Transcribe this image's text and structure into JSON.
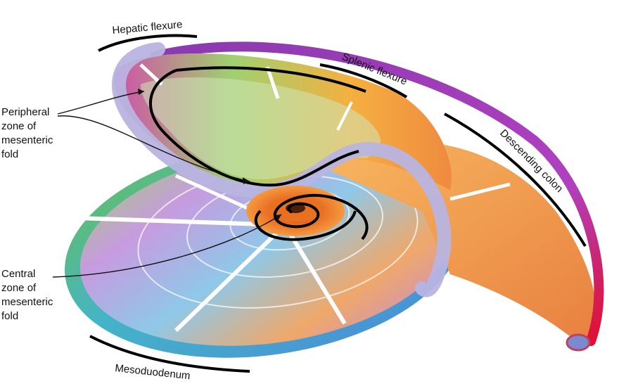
{
  "labels": {
    "hepatic": "Hepatic flexure",
    "splenic": "Splenic flexure",
    "descending": "Descending colon",
    "mesoduodenum": "Mesoduodenum"
  },
  "peripheral_zone": [
    "Peripheral",
    "zone of",
    "mesenteric",
    "fold"
  ],
  "central_zone": [
    "Central",
    "zone of",
    "mesenteric",
    "fold"
  ],
  "colors": {
    "tube": "#b8b4e0",
    "outer_rim": "#3fb0c8",
    "magenta": "#c040b0",
    "orange": "#f08a30",
    "green": "#88c040",
    "core": "#e05a10",
    "tip": "#e01020"
  }
}
